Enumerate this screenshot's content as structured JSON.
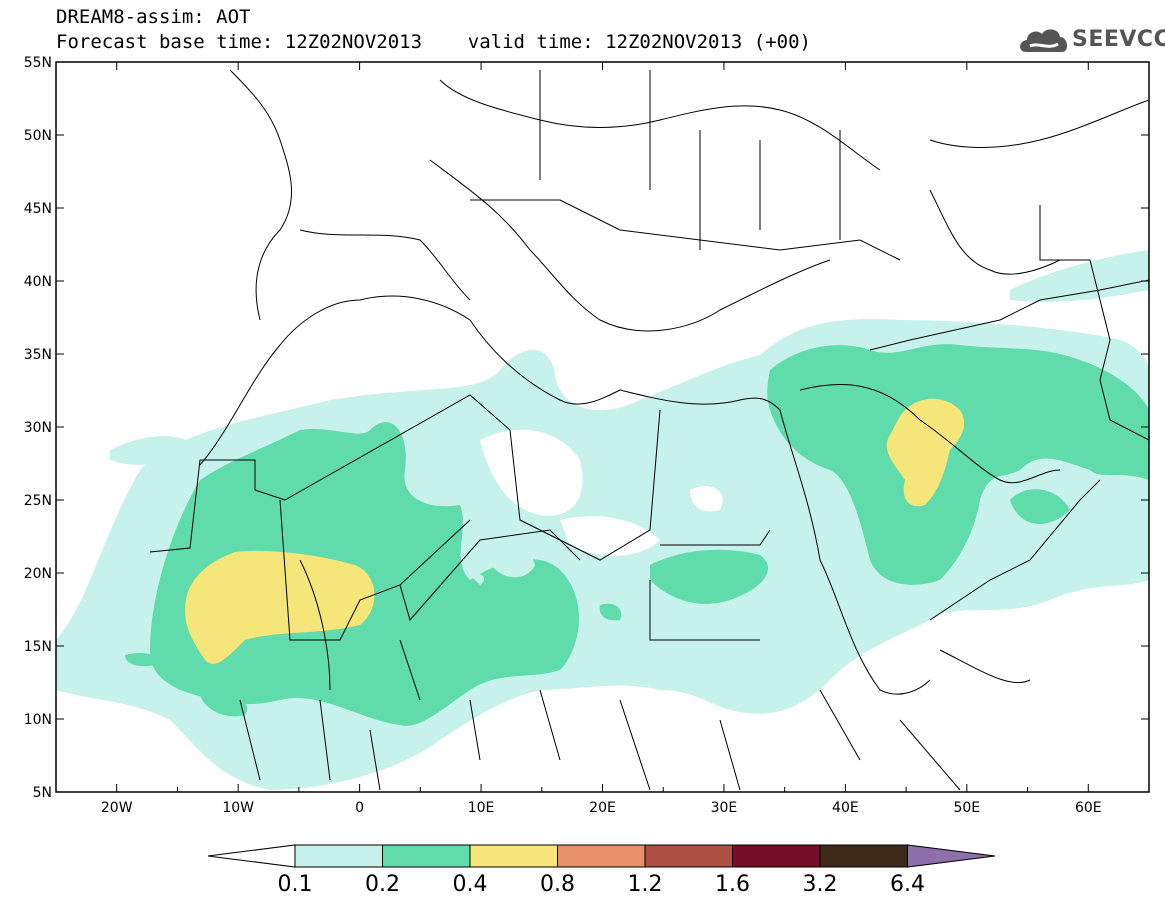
{
  "header": {
    "line1": "DREAM8-assim: AOT",
    "line2": "Forecast base time: 12Z02NOV2013    valid time: 12Z02NOV2013 (+00)",
    "logo_text": "SEEVCCC",
    "logo_icon": "cloud-icon"
  },
  "map": {
    "lon_range": [
      -25,
      65
    ],
    "lat_range": [
      5,
      55
    ],
    "lat_ticks": [
      "5N",
      "10N",
      "15N",
      "20N",
      "25N",
      "30N",
      "35N",
      "40N",
      "45N",
      "50N",
      "55N"
    ],
    "lon_ticks": [
      "20W",
      "10W",
      "0",
      "10E",
      "20E",
      "30E",
      "40E",
      "50E",
      "60E"
    ]
  },
  "colorbar": {
    "labels": [
      "0.1",
      "0.2",
      "0.4",
      "0.8",
      "1.2",
      "1.6",
      "3.2",
      "6.4"
    ],
    "colors": [
      "#ffffff",
      "#c7f1eb",
      "#5fdbac",
      "#f6e578",
      "#e8906a",
      "#ad4f42",
      "#760e27",
      "#3f2a1a",
      "#8e6eab"
    ]
  }
}
